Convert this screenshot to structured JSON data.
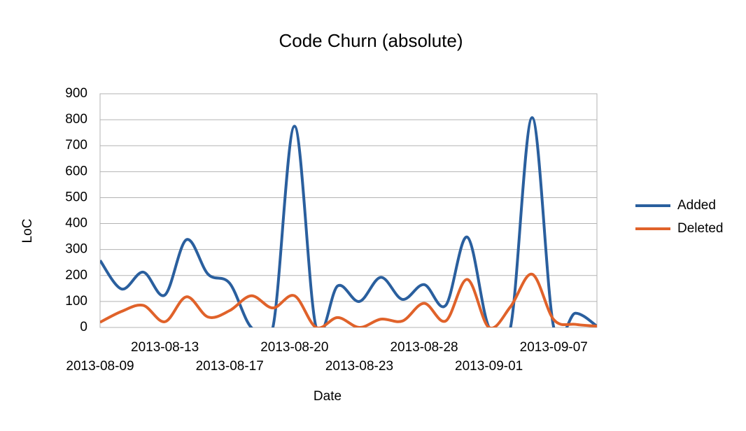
{
  "chart_data": {
    "type": "line",
    "title": "Code Churn (absolute)",
    "x_label": "Date",
    "y_label": "LoC",
    "categories": [
      "2013-08-09",
      null,
      null,
      "2013-08-13",
      null,
      null,
      "2013-08-17",
      null,
      null,
      "2013-08-20",
      null,
      null,
      "2013-08-23",
      null,
      null,
      "2013-08-28",
      null,
      null,
      "2013-09-01",
      null,
      null,
      "2013-09-07",
      null,
      null
    ],
    "series": [
      {
        "name": "Added",
        "color": "#2a5f9e",
        "values": [
          258,
          148,
          213,
          125,
          338,
          205,
          170,
          0,
          0,
          775,
          0,
          160,
          100,
          193,
          108,
          165,
          85,
          348,
          0,
          0,
          808,
          0,
          55,
          5
        ]
      },
      {
        "name": "Deleted",
        "color": "#e0622a",
        "values": [
          20,
          62,
          85,
          22,
          118,
          40,
          65,
          122,
          75,
          122,
          0,
          38,
          0,
          32,
          25,
          93,
          25,
          185,
          0,
          80,
          205,
          30,
          12,
          5
        ]
      }
    ],
    "ylim": [
      0,
      900
    ],
    "yticks": [
      0,
      100,
      200,
      300,
      400,
      500,
      600,
      700,
      800,
      900
    ],
    "grid": true,
    "legend": "right",
    "smooth": true
  }
}
